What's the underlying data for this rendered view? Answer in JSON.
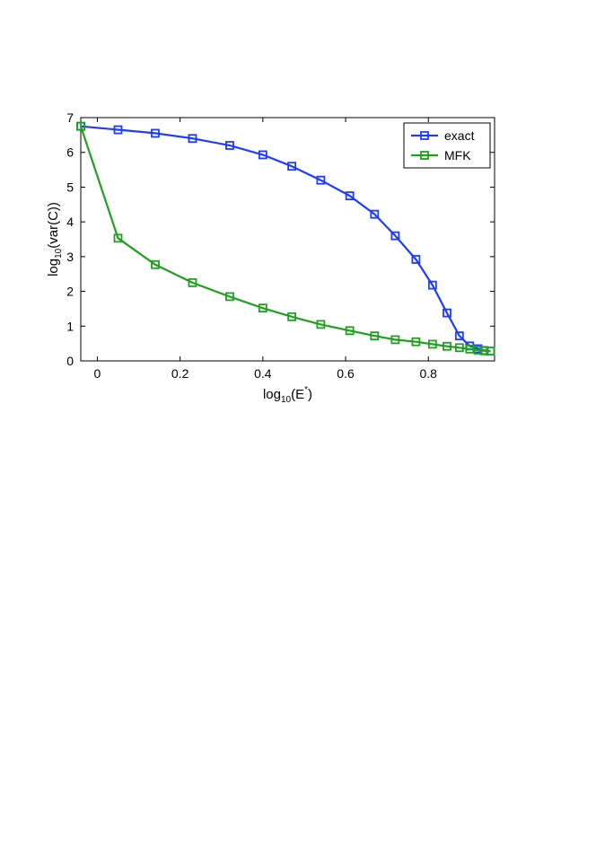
{
  "chart_data": {
    "type": "line",
    "xlabel": {
      "base": "log",
      "sub": "10",
      "mid": "(E",
      "sup": "*",
      "end": ")"
    },
    "ylabel": {
      "base": "log",
      "sub": "10",
      "end": "(var(C))"
    },
    "xlim": [
      -0.04,
      0.96
    ],
    "ylim": [
      0,
      7
    ],
    "xticks": [
      0,
      0.2,
      0.4,
      0.6,
      0.8
    ],
    "xtick_labels": [
      "0",
      "0.2",
      "0.4",
      "0.6",
      "0.8"
    ],
    "yticks": [
      0,
      1,
      2,
      3,
      4,
      5,
      6,
      7
    ],
    "ytick_labels": [
      "0",
      "1",
      "2",
      "3",
      "4",
      "5",
      "6",
      "7"
    ],
    "grid": false,
    "legend_position": "top-right",
    "series": [
      {
        "name": "exact",
        "color": "#1f3bff",
        "x": [
          -0.04,
          0.05,
          0.14,
          0.23,
          0.32,
          0.4,
          0.47,
          0.54,
          0.61,
          0.67,
          0.72,
          0.77,
          0.81,
          0.845,
          0.875,
          0.9,
          0.92,
          0.935,
          0.95
        ],
        "y": [
          6.75,
          6.65,
          6.55,
          6.4,
          6.2,
          5.93,
          5.6,
          5.2,
          4.75,
          4.22,
          3.6,
          2.92,
          2.18,
          1.38,
          0.72,
          0.43,
          0.35,
          0.3,
          0.28
        ]
      },
      {
        "name": "MFK",
        "color": "#1fa01f",
        "x": [
          -0.04,
          0.05,
          0.14,
          0.23,
          0.32,
          0.4,
          0.47,
          0.54,
          0.61,
          0.67,
          0.72,
          0.77,
          0.81,
          0.845,
          0.875,
          0.9,
          0.92,
          0.935,
          0.95
        ],
        "y": [
          6.75,
          3.53,
          2.77,
          2.25,
          1.85,
          1.52,
          1.27,
          1.05,
          0.87,
          0.72,
          0.61,
          0.55,
          0.48,
          0.42,
          0.38,
          0.34,
          0.31,
          0.29,
          0.28
        ]
      }
    ]
  }
}
